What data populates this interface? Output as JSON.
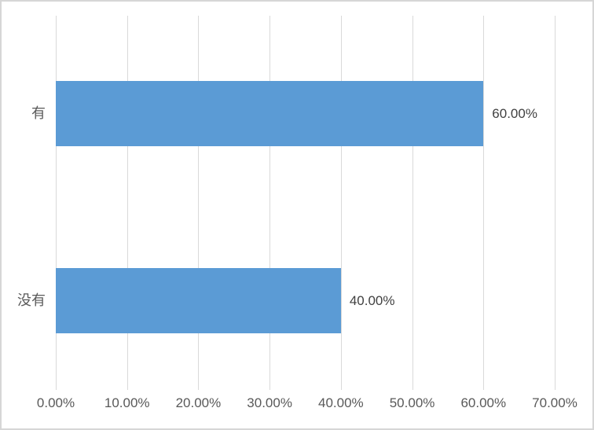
{
  "chart_data": {
    "type": "bar",
    "orientation": "horizontal",
    "title": "",
    "xlabel": "",
    "ylabel": "",
    "categories": [
      "有",
      "没有"
    ],
    "values": [
      60,
      40
    ],
    "value_labels": [
      "60.00%",
      "40.00%"
    ],
    "x_ticks": [
      {
        "value": 0,
        "label": "0.00%"
      },
      {
        "value": 10,
        "label": "10.00%"
      },
      {
        "value": 20,
        "label": "20.00%"
      },
      {
        "value": 30,
        "label": "30.00%"
      },
      {
        "value": 40,
        "label": "40.00%"
      },
      {
        "value": 50,
        "label": "50.00%"
      },
      {
        "value": 60,
        "label": "60.00%"
      },
      {
        "value": 70,
        "label": "70.00%"
      }
    ],
    "xlim": [
      0,
      70
    ],
    "grid": true,
    "legend": false,
    "colors": {
      "bar": "#5b9bd5",
      "gridline": "#d9d9d9",
      "tick_text": "#595959",
      "category_text": "#595959",
      "data_label_text": "#404040",
      "frame_border": "#d6d6d6",
      "background": "#ffffff"
    }
  }
}
